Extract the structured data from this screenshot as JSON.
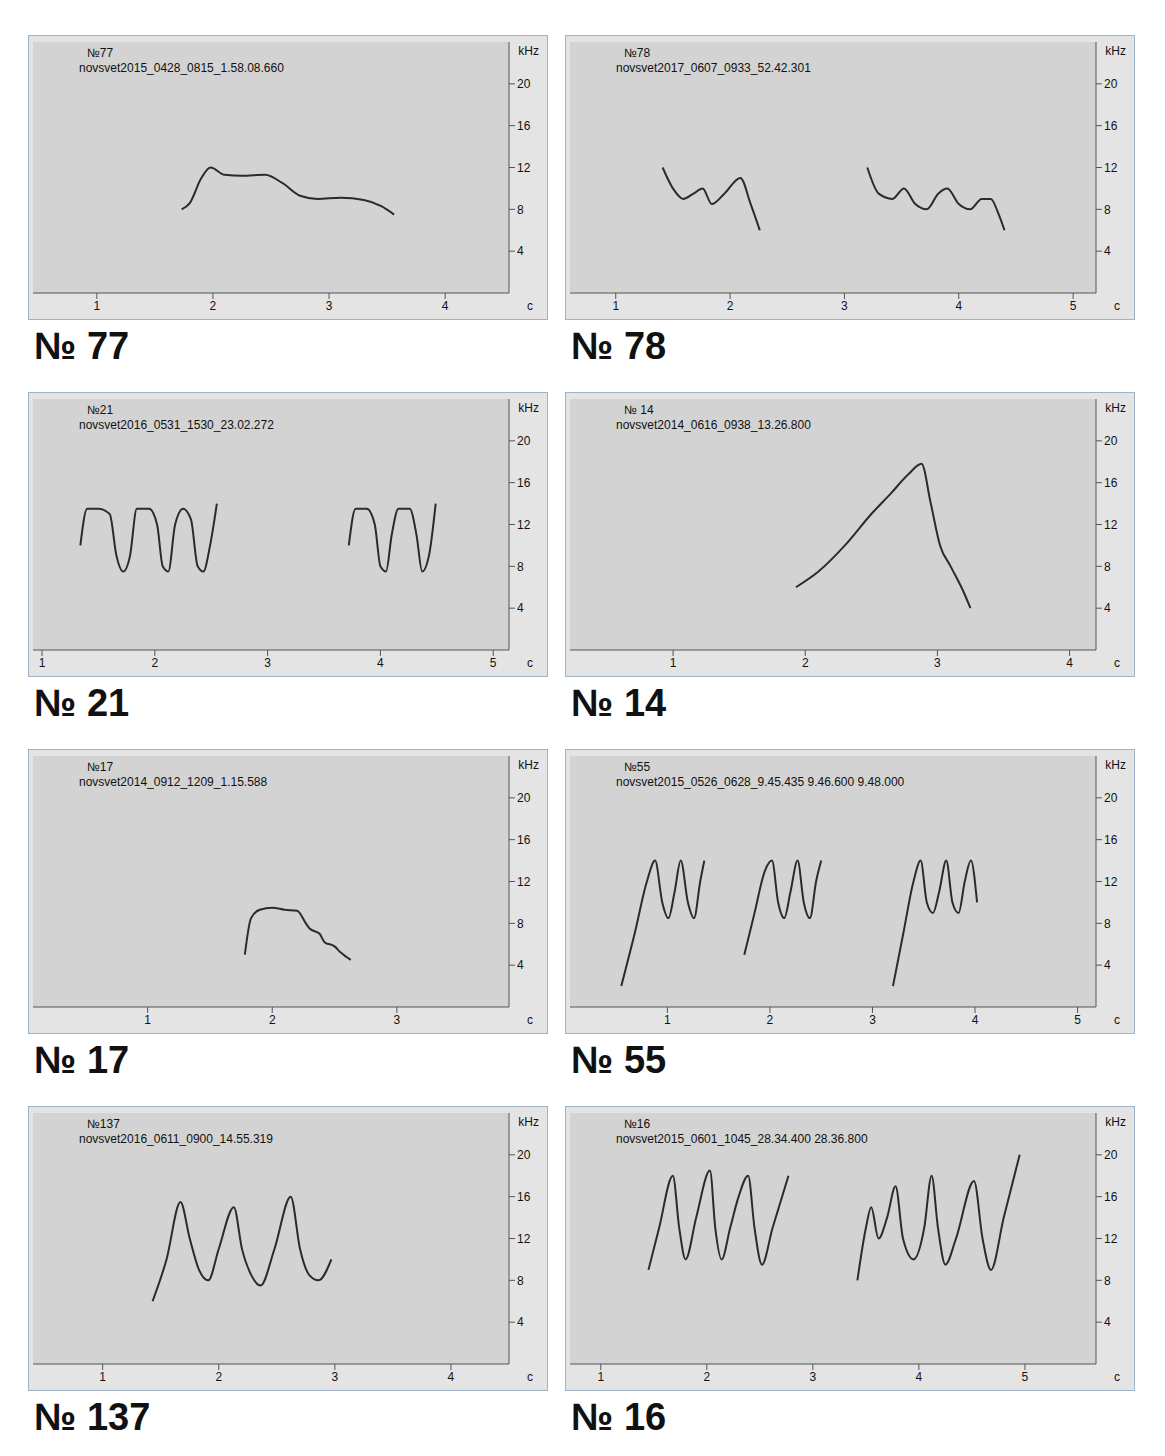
{
  "chart_data": [
    {
      "type": "line",
      "caption": "№ 77",
      "title": "№77",
      "subtitle": "novsvet2015_0428_0815_1.58.08.660",
      "x_label": "c",
      "y_label": "kHz",
      "xlim": [
        0.45,
        4.55
      ],
      "xticks": [
        1,
        2,
        3,
        4
      ],
      "ylim": [
        0,
        24
      ],
      "yticks": [
        4,
        8,
        12,
        16,
        20
      ],
      "grid": false,
      "series": [
        {
          "color": "#2b2b2b",
          "x": [
            1.73,
            1.8,
            1.9,
            1.98,
            2.1,
            2.25,
            2.45,
            2.6,
            2.75,
            2.9,
            3.1,
            3.3,
            3.45,
            3.56
          ],
          "values": [
            8,
            8.6,
            11,
            12,
            11.3,
            11.2,
            11.3,
            10.5,
            9.3,
            9,
            9.1,
            8.9,
            8.3,
            7.5
          ]
        }
      ]
    },
    {
      "type": "line",
      "caption": "№ 78",
      "title": "№78",
      "subtitle": "novsvet2017_0607_0933_52.42.301",
      "x_label": "c",
      "y_label": "kHz",
      "xlim": [
        0.6,
        5.2
      ],
      "xticks": [
        1,
        2,
        3,
        4,
        5
      ],
      "ylim": [
        0,
        24
      ],
      "yticks": [
        4,
        8,
        12,
        16,
        20
      ],
      "grid": false,
      "series": [
        {
          "color": "#2b2b2b",
          "x": [
            1.41,
            1.5,
            1.59,
            1.68,
            1.76,
            1.84,
            1.95,
            2.09,
            2.18,
            2.26
          ],
          "values": [
            12,
            10,
            9,
            9.5,
            10,
            8.5,
            9.5,
            11,
            8.5,
            6
          ]
        },
        {
          "color": "#2b2b2b",
          "x": [
            3.2,
            3.3,
            3.42,
            3.52,
            3.62,
            3.72,
            3.82,
            3.9,
            4.0,
            4.1,
            4.2,
            4.28,
            4.35,
            4.4
          ],
          "values": [
            12,
            9.5,
            9,
            10,
            8.5,
            8,
            9.5,
            10,
            8.5,
            8,
            9,
            9,
            7.5,
            6
          ]
        }
      ]
    },
    {
      "type": "line",
      "caption": "№ 21",
      "title": "№21",
      "subtitle": "novsvet2016_0531_1530_23.02.272",
      "x_label": "c",
      "y_label": "kHz",
      "xlim": [
        0.92,
        5.14
      ],
      "xticks": [
        1,
        2,
        3,
        4,
        5
      ],
      "ylim": [
        0,
        24
      ],
      "yticks": [
        4,
        8,
        12,
        16,
        20
      ],
      "grid": false,
      "series": [
        {
          "color": "#2b2b2b",
          "x": [
            1.34,
            1.4,
            1.5,
            1.6,
            1.66,
            1.72,
            1.78,
            1.84,
            1.95,
            2.02,
            2.07,
            2.12,
            2.18,
            2.25,
            2.32,
            2.38,
            2.43,
            2.49,
            2.55
          ],
          "values": [
            10,
            13.5,
            13.5,
            13,
            9,
            7.5,
            9,
            13.5,
            13.5,
            12,
            8,
            7.5,
            12,
            13.5,
            12.5,
            8,
            7.5,
            10,
            14
          ]
        },
        {
          "color": "#2b2b2b",
          "x": [
            3.72,
            3.78,
            3.88,
            3.95,
            4.0,
            4.05,
            4.1,
            4.16,
            4.26,
            4.32,
            4.37,
            4.43,
            4.49
          ],
          "values": [
            10,
            13.5,
            13.5,
            12,
            8,
            7.5,
            11,
            13.5,
            13.5,
            11,
            7.5,
            9,
            14
          ]
        }
      ]
    },
    {
      "type": "line",
      "caption": "№ 14",
      "title": "№ 14",
      "subtitle": "novsvet2014_0616_0938_13.26.800",
      "x_label": "c",
      "y_label": "kHz",
      "xlim": [
        0.22,
        4.2
      ],
      "xticks": [
        1,
        2,
        3,
        4
      ],
      "ylim": [
        0,
        24
      ],
      "yticks": [
        4,
        8,
        12,
        16,
        20
      ],
      "grid": false,
      "series": [
        {
          "color": "#2b2b2b",
          "x": [
            1.93,
            2.1,
            2.3,
            2.5,
            2.65,
            2.78,
            2.88,
            2.95,
            3.02,
            3.1,
            3.2,
            3.25
          ],
          "values": [
            6,
            7.5,
            10,
            13,
            15,
            16.8,
            17.8,
            14,
            10,
            8,
            5.5,
            4
          ]
        }
      ]
    },
    {
      "type": "line",
      "caption": "№ 17",
      "title": "№17",
      "subtitle": "novsvet2014_0912_1209_1.15.588",
      "x_label": "c",
      "y_label": "kHz",
      "xlim": [
        0.08,
        3.9
      ],
      "xticks": [
        1,
        2,
        3
      ],
      "ylim": [
        0,
        24
      ],
      "yticks": [
        4,
        8,
        12,
        16,
        20
      ],
      "grid": false,
      "series": [
        {
          "color": "#2b2b2b",
          "x": [
            1.78,
            1.83,
            1.9,
            2.0,
            2.1,
            2.2,
            2.27,
            2.3,
            2.38,
            2.42,
            2.5,
            2.55,
            2.63
          ],
          "values": [
            5,
            8.5,
            9.3,
            9.5,
            9.3,
            9.2,
            8,
            7.5,
            7,
            6.2,
            5.8,
            5.2,
            4.5
          ]
        }
      ]
    },
    {
      "type": "line",
      "caption": "№ 55",
      "title": "№55",
      "subtitle": "novsvet2015_0526_0628_9.45.435 9.46.600 9.48.000",
      "x_label": "c",
      "y_label": "kHz",
      "xlim": [
        0.05,
        5.18
      ],
      "xticks": [
        1,
        2,
        3,
        4,
        5
      ],
      "ylim": [
        0,
        24
      ],
      "yticks": [
        4,
        8,
        12,
        16,
        20
      ],
      "grid": false,
      "series": [
        {
          "color": "#2b2b2b",
          "x": [
            0.55,
            0.68,
            0.8,
            0.88,
            0.95,
            1.01,
            1.07,
            1.13,
            1.2,
            1.26,
            1.32,
            1.36
          ],
          "values": [
            2,
            7,
            12,
            14,
            10,
            8.5,
            11,
            14,
            10,
            8.5,
            12,
            14
          ]
        },
        {
          "color": "#2b2b2b",
          "x": [
            1.75,
            1.85,
            1.95,
            2.02,
            2.08,
            2.14,
            2.2,
            2.27,
            2.33,
            2.39,
            2.45,
            2.5
          ],
          "values": [
            5,
            9,
            13,
            14,
            10,
            8.5,
            11,
            14,
            10,
            8.5,
            12,
            14
          ]
        },
        {
          "color": "#2b2b2b",
          "x": [
            3.2,
            3.3,
            3.4,
            3.47,
            3.53,
            3.59,
            3.65,
            3.72,
            3.78,
            3.84,
            3.9,
            3.96,
            4.02
          ],
          "values": [
            2,
            7,
            12,
            14,
            10,
            9,
            11,
            14,
            10,
            9,
            12,
            14,
            10
          ]
        }
      ]
    },
    {
      "type": "line",
      "caption": "№ 137",
      "title": "№137",
      "subtitle": "novsvet2016_0611_0900_14.55.319",
      "x_label": "c",
      "y_label": "kHz",
      "xlim": [
        0.4,
        4.5
      ],
      "xticks": [
        1,
        2,
        3,
        4
      ],
      "ylim": [
        0,
        24
      ],
      "yticks": [
        4,
        8,
        12,
        16,
        20
      ],
      "grid": false,
      "series": [
        {
          "color": "#2b2b2b",
          "x": [
            1.43,
            1.55,
            1.67,
            1.75,
            1.83,
            1.91,
            2.0,
            2.13,
            2.2,
            2.28,
            2.36,
            2.48,
            2.62,
            2.7,
            2.78,
            2.86,
            2.97
          ],
          "values": [
            6,
            10,
            15.5,
            12,
            9,
            8,
            11,
            15,
            11,
            8.5,
            7.5,
            11,
            16,
            11,
            8.5,
            8,
            10
          ]
        }
      ]
    },
    {
      "type": "line",
      "caption": "№ 16",
      "title": "№16",
      "subtitle": "novsvet2015_0601_1045_28.34.400 28.36.800",
      "x_label": "c",
      "y_label": "kHz",
      "xlim": [
        0.71,
        5.67
      ],
      "xticks": [
        1,
        2,
        3,
        4,
        5
      ],
      "ylim": [
        0,
        24
      ],
      "yticks": [
        4,
        8,
        12,
        16,
        20
      ],
      "grid": false,
      "series": [
        {
          "color": "#2b2b2b",
          "x": [
            1.45,
            1.55,
            1.68,
            1.74,
            1.8,
            1.9,
            2.03,
            2.08,
            2.14,
            2.22,
            2.3,
            2.39,
            2.45,
            2.52,
            2.62,
            2.77
          ],
          "values": [
            9,
            13,
            18,
            13,
            10,
            14,
            18.5,
            13,
            10,
            13,
            16,
            18,
            13,
            9.5,
            13,
            18
          ]
        },
        {
          "color": "#2b2b2b",
          "x": [
            3.42,
            3.5,
            3.55,
            3.62,
            3.7,
            3.78,
            3.85,
            3.95,
            4.05,
            4.12,
            4.18,
            4.25,
            4.35,
            4.52,
            4.6,
            4.68,
            4.8,
            4.95
          ],
          "values": [
            8,
            13,
            15,
            12,
            14,
            17,
            12,
            10,
            13,
            18,
            13,
            9.5,
            12,
            17.5,
            12,
            9,
            14,
            20
          ]
        }
      ]
    }
  ]
}
